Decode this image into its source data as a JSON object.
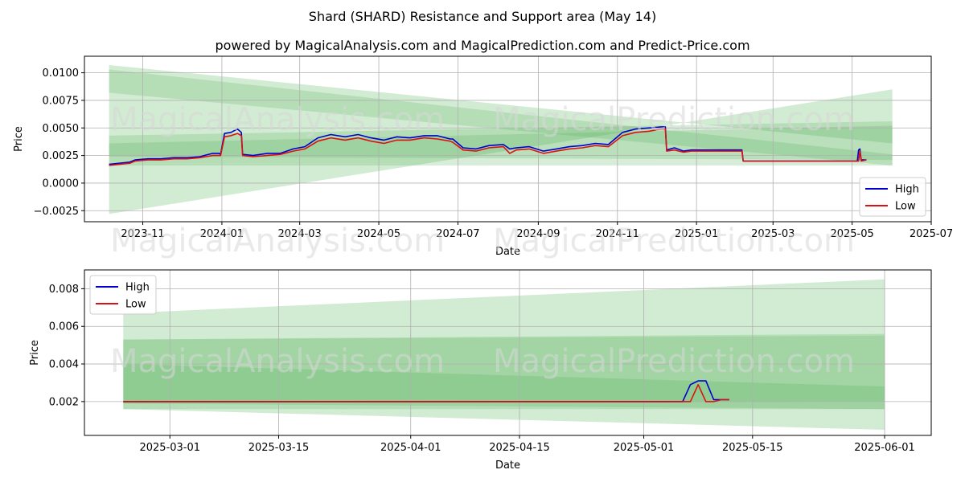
{
  "figure": {
    "title": "Shard (SHARD) Resistance and Support area (May 14)",
    "subtitle": "powered by MagicalAnalysis.com and MagicalPrediction.com and Predict-Price.com",
    "watermarks": [
      "MagicalAnalysis.com",
      "MagicalPrediction.com"
    ]
  },
  "colors": {
    "high": "#0000cc",
    "low": "#dd1111",
    "band": "#4caf50",
    "grid": "#b0b0b0"
  },
  "chart_data": [
    {
      "type": "line",
      "xlabel": "Date",
      "ylabel": "Price",
      "xlim": [
        "2023-09-17",
        "2025-07-01"
      ],
      "ylim": [
        -0.0035,
        0.0115
      ],
      "grid": true,
      "legend": "lower-right",
      "x_ticks": [
        {
          "date": "2023-11-01",
          "label": "2023-11"
        },
        {
          "date": "2024-01-01",
          "label": "2024-01"
        },
        {
          "date": "2024-03-01",
          "label": "2024-03"
        },
        {
          "date": "2024-05-01",
          "label": "2024-05"
        },
        {
          "date": "2024-07-01",
          "label": "2024-07"
        },
        {
          "date": "2024-09-01",
          "label": "2024-09"
        },
        {
          "date": "2024-11-01",
          "label": "2024-11"
        },
        {
          "date": "2025-01-01",
          "label": "2025-01"
        },
        {
          "date": "2025-03-01",
          "label": "2025-03"
        },
        {
          "date": "2025-05-01",
          "label": "2025-05"
        },
        {
          "date": "2025-07-01",
          "label": "2025-07"
        }
      ],
      "y_ticks": [
        {
          "value": -0.0025,
          "label": "−0.0025"
        },
        {
          "value": 0.0,
          "label": "0.0000"
        },
        {
          "value": 0.0025,
          "label": "0.0025"
        },
        {
          "value": 0.005,
          "label": "0.0050"
        },
        {
          "value": 0.0075,
          "label": "0.0075"
        },
        {
          "value": 0.01,
          "label": "0.0100"
        }
      ],
      "bands": [
        {
          "x0": "2023-10-06",
          "x1": "2025-06-01",
          "top0": 0.0107,
          "top1": 0.0036,
          "bot0": -0.0028,
          "bot1": 0.0085,
          "opacity": 0.25
        },
        {
          "x0": "2023-10-06",
          "x1": "2025-06-01",
          "top0": 0.0103,
          "top1": 0.0026,
          "bot0": 0.0082,
          "bot1": 0.0016,
          "opacity": 0.22
        },
        {
          "x0": "2023-10-06",
          "x1": "2025-06-01",
          "top0": 0.0043,
          "top1": 0.0056,
          "bot0": 0.0016,
          "bot1": 0.0016,
          "opacity": 0.22
        },
        {
          "x0": "2023-10-06",
          "x1": "2025-06-01",
          "top0": 0.0036,
          "top1": 0.0052,
          "bot0": 0.0024,
          "bot1": 0.0021,
          "opacity": 0.22
        }
      ],
      "series": [
        {
          "name": "High",
          "x": [
            "2023-10-06",
            "2023-10-14",
            "2023-10-22",
            "2023-10-26",
            "2023-11-05",
            "2023-11-15",
            "2023-11-25",
            "2023-12-05",
            "2023-12-15",
            "2023-12-25",
            "2023-12-30",
            "2023-12-31",
            "2024-01-03",
            "2024-01-08",
            "2024-01-13",
            "2024-01-16",
            "2024-01-17",
            "2024-01-25",
            "2024-02-05",
            "2024-02-15",
            "2024-02-25",
            "2024-03-05",
            "2024-03-15",
            "2024-03-25",
            "2024-04-05",
            "2024-04-15",
            "2024-04-25",
            "2024-05-05",
            "2024-05-15",
            "2024-05-25",
            "2024-06-05",
            "2024-06-15",
            "2024-06-25",
            "2024-06-27",
            "2024-07-05",
            "2024-07-15",
            "2024-07-25",
            "2024-08-05",
            "2024-08-10",
            "2024-08-15",
            "2024-08-25",
            "2024-09-05",
            "2024-09-15",
            "2024-09-25",
            "2024-10-05",
            "2024-10-15",
            "2024-10-25",
            "2024-11-05",
            "2024-11-15",
            "2024-11-25",
            "2024-12-05",
            "2024-12-08",
            "2024-12-09",
            "2024-12-15",
            "2024-12-22",
            "2024-12-28",
            "2025-01-10",
            "2025-02-05",
            "2025-02-06",
            "2025-02-20",
            "2025-03-20",
            "2025-04-20",
            "2025-05-05",
            "2025-05-06",
            "2025-05-07",
            "2025-05-08",
            "2025-05-12"
          ],
          "y": [
            0.0017,
            0.0018,
            0.0019,
            0.0021,
            0.0022,
            0.0022,
            0.0023,
            0.0023,
            0.0024,
            0.0027,
            0.0027,
            0.0026,
            0.0045,
            0.0046,
            0.0049,
            0.0046,
            0.0026,
            0.0025,
            0.0027,
            0.0027,
            0.0031,
            0.0033,
            0.0041,
            0.0044,
            0.0042,
            0.0044,
            0.0041,
            0.0039,
            0.0042,
            0.0041,
            0.0043,
            0.0043,
            0.004,
            0.004,
            0.0032,
            0.0031,
            0.0034,
            0.0035,
            0.0031,
            0.0032,
            0.0033,
            0.0029,
            0.0031,
            0.0033,
            0.0034,
            0.0036,
            0.0035,
            0.0046,
            0.0049,
            0.005,
            0.0051,
            0.0051,
            0.003,
            0.0032,
            0.0029,
            0.003,
            0.003,
            0.003,
            0.002,
            0.002,
            0.002,
            0.002,
            0.002,
            0.003,
            0.0031,
            0.0021,
            0.0021
          ]
        },
        {
          "name": "Low",
          "x": [
            "2023-10-06",
            "2023-10-14",
            "2023-10-22",
            "2023-10-26",
            "2023-11-05",
            "2023-11-15",
            "2023-11-25",
            "2023-12-05",
            "2023-12-15",
            "2023-12-25",
            "2023-12-30",
            "2023-12-31",
            "2024-01-03",
            "2024-01-08",
            "2024-01-13",
            "2024-01-16",
            "2024-01-17",
            "2024-01-25",
            "2024-02-05",
            "2024-02-15",
            "2024-02-25",
            "2024-03-05",
            "2024-03-15",
            "2024-03-25",
            "2024-04-05",
            "2024-04-15",
            "2024-04-25",
            "2024-05-05",
            "2024-05-15",
            "2024-05-25",
            "2024-06-05",
            "2024-06-15",
            "2024-06-25",
            "2024-06-27",
            "2024-07-05",
            "2024-07-15",
            "2024-07-25",
            "2024-08-05",
            "2024-08-10",
            "2024-08-15",
            "2024-08-25",
            "2024-09-05",
            "2024-09-15",
            "2024-09-25",
            "2024-10-05",
            "2024-10-15",
            "2024-10-25",
            "2024-11-05",
            "2024-11-15",
            "2024-11-25",
            "2024-12-05",
            "2024-12-08",
            "2024-12-09",
            "2024-12-15",
            "2024-12-22",
            "2024-12-28",
            "2025-01-10",
            "2025-02-05",
            "2025-02-06",
            "2025-02-20",
            "2025-03-20",
            "2025-04-20",
            "2025-05-05",
            "2025-05-06",
            "2025-05-07",
            "2025-05-08",
            "2025-05-12"
          ],
          "y": [
            0.0016,
            0.0017,
            0.0018,
            0.002,
            0.0021,
            0.0021,
            0.0022,
            0.0022,
            0.0023,
            0.0025,
            0.0025,
            0.0025,
            0.0042,
            0.0043,
            0.0045,
            0.0043,
            0.0025,
            0.0024,
            0.0025,
            0.0026,
            0.0029,
            0.0031,
            0.0038,
            0.0041,
            0.0039,
            0.0041,
            0.0038,
            0.0036,
            0.0039,
            0.0039,
            0.0041,
            0.004,
            0.0038,
            0.0037,
            0.003,
            0.0029,
            0.0032,
            0.0033,
            0.0027,
            0.003,
            0.0031,
            0.0027,
            0.0029,
            0.0031,
            0.0032,
            0.0034,
            0.0033,
            0.0043,
            0.0046,
            0.0047,
            0.0049,
            0.0049,
            0.0029,
            0.003,
            0.0028,
            0.0029,
            0.0029,
            0.0029,
            0.002,
            0.002,
            0.002,
            0.002,
            0.002,
            0.002,
            0.0029,
            0.002,
            0.0021
          ]
        }
      ]
    },
    {
      "type": "line",
      "xlabel": "Date",
      "ylabel": "Price",
      "xlim": [
        "2025-02-18",
        "2025-06-07"
      ],
      "ylim": [
        0.0002,
        0.009
      ],
      "grid": true,
      "legend": "upper-left",
      "x_ticks": [
        {
          "date": "2025-03-01",
          "label": "2025-03-01"
        },
        {
          "date": "2025-03-15",
          "label": "2025-03-15"
        },
        {
          "date": "2025-04-01",
          "label": "2025-04-01"
        },
        {
          "date": "2025-04-15",
          "label": "2025-04-15"
        },
        {
          "date": "2025-05-01",
          "label": "2025-05-01"
        },
        {
          "date": "2025-05-15",
          "label": "2025-05-15"
        },
        {
          "date": "2025-06-01",
          "label": "2025-06-01"
        }
      ],
      "y_ticks": [
        {
          "value": 0.002,
          "label": "0.002"
        },
        {
          "value": 0.004,
          "label": "0.004"
        },
        {
          "value": 0.006,
          "label": "0.006"
        },
        {
          "value": 0.008,
          "label": "0.008"
        }
      ],
      "bands": [
        {
          "x0": "2025-02-23",
          "x1": "2025-06-01",
          "top0": 0.0067,
          "top1": 0.0085,
          "bot0": 0.0016,
          "bot1": 0.0005,
          "opacity": 0.25
        },
        {
          "x0": "2025-02-23",
          "x1": "2025-06-01",
          "top0": 0.0053,
          "top1": 0.0056,
          "bot0": 0.0016,
          "bot1": 0.0016,
          "opacity": 0.22
        },
        {
          "x0": "2025-02-23",
          "x1": "2025-06-01",
          "top0": 0.004,
          "top1": 0.0028,
          "bot0": 0.0019,
          "bot1": 0.0016,
          "opacity": 0.22
        },
        {
          "x0": "2025-02-23",
          "x1": "2025-06-01",
          "top0": 0.0053,
          "top1": 0.0055,
          "bot0": 0.0019,
          "bot1": 0.002,
          "opacity": 0.18
        }
      ],
      "series": [
        {
          "name": "High",
          "x": [
            "2025-02-23",
            "2025-05-06",
            "2025-05-07",
            "2025-05-08",
            "2025-05-09",
            "2025-05-10",
            "2025-05-11",
            "2025-05-12"
          ],
          "y": [
            0.002,
            0.002,
            0.0029,
            0.0031,
            0.0031,
            0.0021,
            0.0021,
            0.0021
          ]
        },
        {
          "name": "Low",
          "x": [
            "2025-02-23",
            "2025-05-07",
            "2025-05-08",
            "2025-05-09",
            "2025-05-10",
            "2025-05-11",
            "2025-05-12"
          ],
          "y": [
            0.002,
            0.002,
            0.0029,
            0.002,
            0.002,
            0.0021,
            0.0021
          ]
        }
      ]
    }
  ]
}
